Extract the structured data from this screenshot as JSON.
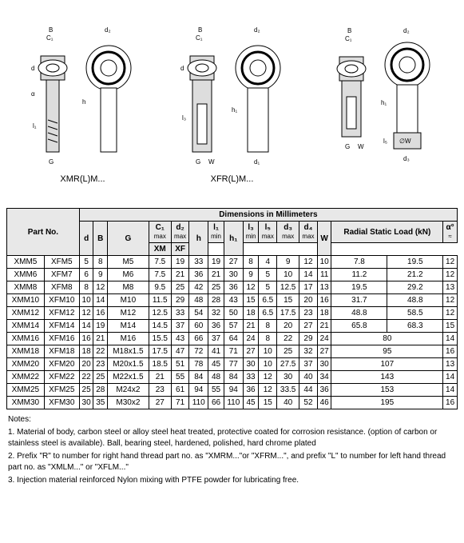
{
  "diagrams": {
    "left_label": "XMR(L)M...",
    "right_label": "XFR(L)M...",
    "dim_labels": [
      "B",
      "C₁",
      "d₂",
      "d",
      "α",
      "h",
      "l₁",
      "G",
      "W",
      "h₁",
      "l₃",
      "d₁",
      "l₅",
      "∅W",
      "d₃"
    ],
    "stroke": "#000000",
    "fill_hatch": "#cccccc",
    "fill_white": "#ffffff"
  },
  "table": {
    "title": "Dimensions in Millimeters",
    "partno_header": "Part No.",
    "radial_header": "Radial Static Load (kN)",
    "headers": [
      "d",
      "B",
      "G",
      "C₁",
      "d₂",
      "h",
      "l₁",
      "h₁",
      "l₃",
      "l₅",
      "d₃",
      "d₄",
      "W",
      "XM",
      "XF",
      "α°"
    ],
    "sub": {
      "c1": "max",
      "d2": "max",
      "l1": "min",
      "l3": "min",
      "l5": "max",
      "d3": "max",
      "d4": "max",
      "alpha": "≈"
    },
    "rows": [
      {
        "p1": "XMM5",
        "p2": "XFM5",
        "d": "5",
        "B": "8",
        "G": "M5",
        "C1": "7.5",
        "d2": "19",
        "h": "33",
        "l1": "19",
        "h1": "27",
        "l3": "8",
        "l5": "4",
        "d3": "9",
        "d4": "12",
        "W": "10",
        "XM": "7.8",
        "XF": "19.5",
        "a": "12"
      },
      {
        "p1": "XMM6",
        "p2": "XFM7",
        "d": "6",
        "B": "9",
        "G": "M6",
        "C1": "7.5",
        "d2": "21",
        "h": "36",
        "l1": "21",
        "h1": "30",
        "l3": "9",
        "l5": "5",
        "d3": "10",
        "d4": "14",
        "W": "11",
        "XM": "11.2",
        "XF": "21.2",
        "a": "12"
      },
      {
        "p1": "XMM8",
        "p2": "XFM8",
        "d": "8",
        "B": "12",
        "G": "M8",
        "C1": "9.5",
        "d2": "25",
        "h": "42",
        "l1": "25",
        "h1": "36",
        "l3": "12",
        "l5": "5",
        "d3": "12.5",
        "d4": "17",
        "W": "13",
        "XM": "19.5",
        "XF": "29.2",
        "a": "13"
      },
      {
        "p1": "XMM10",
        "p2": "XFM10",
        "d": "10",
        "B": "14",
        "G": "M10",
        "C1": "11.5",
        "d2": "29",
        "h": "48",
        "l1": "28",
        "h1": "43",
        "l3": "15",
        "l5": "6.5",
        "d3": "15",
        "d4": "20",
        "W": "16",
        "XM": "31.7",
        "XF": "48.8",
        "a": "12"
      },
      {
        "p1": "XMM12",
        "p2": "XFM12",
        "d": "12",
        "B": "16",
        "G": "M12",
        "C1": "12.5",
        "d2": "33",
        "h": "54",
        "l1": "32",
        "h1": "50",
        "l3": "18",
        "l5": "6.5",
        "d3": "17.5",
        "d4": "23",
        "W": "18",
        "XM": "48.8",
        "XF": "58.5",
        "a": "12"
      },
      {
        "p1": "XMM14",
        "p2": "XFM14",
        "d": "14",
        "B": "19",
        "G": "M14",
        "C1": "14.5",
        "d2": "37",
        "h": "60",
        "l1": "36",
        "h1": "57",
        "l3": "21",
        "l5": "8",
        "d3": "20",
        "d4": "27",
        "W": "21",
        "XM": "65.8",
        "XF": "68.3",
        "a": "15"
      },
      {
        "p1": "XMM16",
        "p2": "XFM16",
        "d": "16",
        "B": "21",
        "G": "M16",
        "C1": "15.5",
        "d2": "43",
        "h": "66",
        "l1": "37",
        "h1": "64",
        "l3": "24",
        "l5": "8",
        "d3": "22",
        "d4": "29",
        "W": "24",
        "XM": "80",
        "XF": "",
        "a": "14"
      },
      {
        "p1": "XMM18",
        "p2": "XFM18",
        "d": "18",
        "B": "22",
        "G": "M18x1.5",
        "C1": "17.5",
        "d2": "47",
        "h": "72",
        "l1": "41",
        "h1": "71",
        "l3": "27",
        "l5": "10",
        "d3": "25",
        "d4": "32",
        "W": "27",
        "XM": "95",
        "XF": "",
        "a": "16"
      },
      {
        "p1": "XMM20",
        "p2": "XFM20",
        "d": "20",
        "B": "23",
        "G": "M20x1.5",
        "C1": "18.5",
        "d2": "51",
        "h": "78",
        "l1": "45",
        "h1": "77",
        "l3": "30",
        "l5": "10",
        "d3": "27.5",
        "d4": "37",
        "W": "30",
        "XM": "107",
        "XF": "",
        "a": "13"
      },
      {
        "p1": "XMM22",
        "p2": "XFM22",
        "d": "22",
        "B": "25",
        "G": "M22x1.5",
        "C1": "21",
        "d2": "55",
        "h": "84",
        "l1": "48",
        "h1": "84",
        "l3": "33",
        "l5": "12",
        "d3": "30",
        "d4": "40",
        "W": "34",
        "XM": "143",
        "XF": "",
        "a": "14"
      },
      {
        "p1": "XMM25",
        "p2": "XFM25",
        "d": "25",
        "B": "28",
        "G": "M24x2",
        "C1": "23",
        "d2": "61",
        "h": "94",
        "l1": "55",
        "h1": "94",
        "l3": "36",
        "l5": "12",
        "d3": "33.5",
        "d4": "44",
        "W": "36",
        "XM": "153",
        "XF": "",
        "a": "14"
      },
      {
        "p1": "XMM30",
        "p2": "XFM30",
        "d": "30",
        "B": "35",
        "G": "M30x2",
        "C1": "27",
        "d2": "71",
        "h": "110",
        "l1": "66",
        "h1": "110",
        "l3": "45",
        "l5": "15",
        "d3": "40",
        "d4": "52",
        "W": "46",
        "XM": "195",
        "XF": "",
        "a": "16"
      }
    ]
  },
  "notes": {
    "header": "Notes:",
    "n1": "1. Material of body, carbon steel or alloy steel heat treated, protective coated for corrosion resistance. (option of carbon or stainless steel is available). Ball, bearing steel, hardened, polished, hard chrome plated",
    "n2": "2. Prefix \"R\" to number for right hand thread part no. as \"XMRM...\"or \"XFRM...\", and prefix \"L\" to number for left hand thread part no. as \"XMLM...\" or \"XFLM...\"",
    "n3": "3. Injection material reinforced Nylon mixing with PTFE powder for lubricating free."
  }
}
